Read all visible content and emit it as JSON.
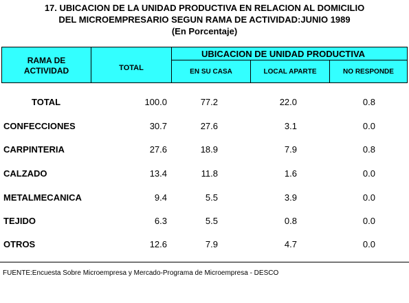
{
  "title": {
    "line1": "17. UBICACION DE LA UNIDAD PRODUCTIVA EN RELACION AL DOMICILIO",
    "line2": "DEL MICROEMPRESARIO SEGUN RAMA DE ACTIVIDAD:JUNIO 1989",
    "line3": "(En Porcentaje)"
  },
  "header": {
    "rama_line1": "RAMA DE",
    "rama_line2": "ACTIVIDAD",
    "total": "TOTAL",
    "ubicacion": "UBICACION DE UNIDAD PRODUCTIVA",
    "en_su_casa": "EN SU CASA",
    "local_aparte": "LOCAL APARTE",
    "no_responde": "NO RESPONDE"
  },
  "rows": [
    {
      "label": "TOTAL",
      "total": "100.0",
      "casa": "77.2",
      "local": "22.0",
      "nores": "0.8"
    },
    {
      "label": "CONFECCIONES",
      "total": "30.7",
      "casa": "27.6",
      "local": "3.1",
      "nores": "0.0"
    },
    {
      "label": "CARPINTERIA",
      "total": "27.6",
      "casa": "18.9",
      "local": "7.9",
      "nores": "0.8"
    },
    {
      "label": "CALZADO",
      "total": "13.4",
      "casa": "11.8",
      "local": "1.6",
      "nores": "0.0"
    },
    {
      "label": "METALMECANICA",
      "total": "9.4",
      "casa": "5.5",
      "local": "3.9",
      "nores": "0.0"
    },
    {
      "label": "TEJIDO",
      "total": "6.3",
      "casa": "5.5",
      "local": "0.8",
      "nores": "0.0"
    },
    {
      "label": "OTROS",
      "total": "12.6",
      "casa": "7.9",
      "local": "4.7",
      "nores": "0.0"
    }
  ],
  "footer": "FUENTE:Encuesta Sobre Microempresa y Mercado-Programa de Microempresa - DESCO"
}
